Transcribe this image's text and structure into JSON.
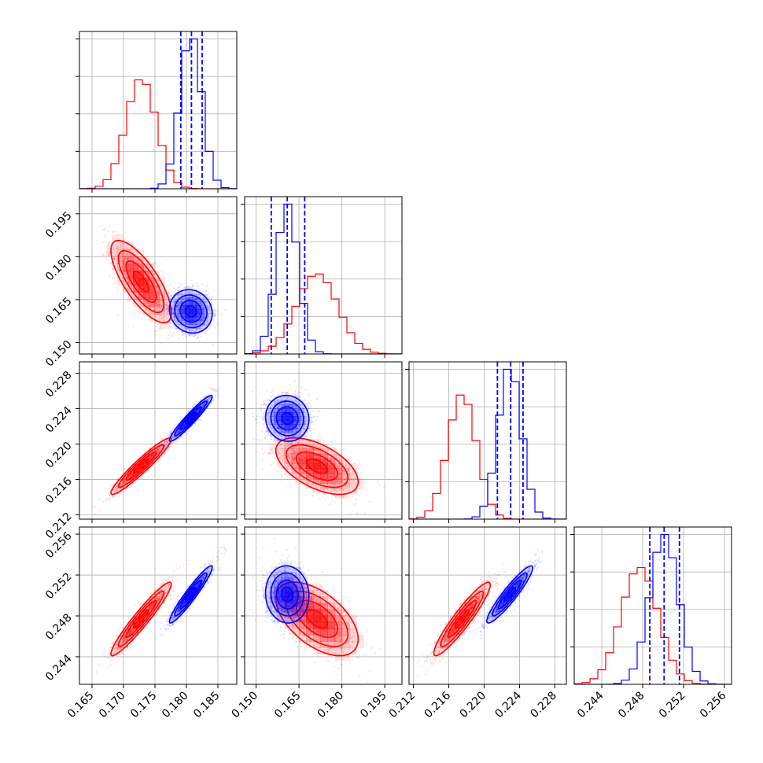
{
  "chart_data": {
    "type": "scatter",
    "subtype": "corner-plot",
    "grid": true,
    "legend": "none",
    "colors": {
      "red": "#ff0000",
      "blue": "#0000ff"
    },
    "params": [
      {
        "range": [
          0.163,
          0.188
        ],
        "ticks": [
          "0.165",
          "0.170",
          "0.175",
          "0.180",
          "0.185"
        ],
        "tick_values": [
          0.165,
          0.17,
          0.175,
          0.18,
          0.185
        ]
      },
      {
        "range": [
          0.146,
          0.201
        ],
        "ticks": [
          "0.150",
          "0.165",
          "0.180",
          "0.195"
        ],
        "tick_values": [
          0.15,
          0.165,
          0.18,
          0.195
        ]
      },
      {
        "range": [
          0.2115,
          0.2293
        ],
        "ticks": [
          "0.212",
          "0.216",
          "0.220",
          "0.224",
          "0.228"
        ],
        "tick_values": [
          0.212,
          0.216,
          0.22,
          0.224,
          0.228
        ]
      },
      {
        "range": [
          0.2413,
          0.2567
        ],
        "ticks": [
          "0.244",
          "0.248",
          "0.252",
          "0.256"
        ],
        "tick_values": [
          0.244,
          0.248,
          0.252,
          0.256
        ]
      }
    ],
    "series": [
      {
        "color": "#ff0000",
        "mean": [
          0.1728,
          0.1713,
          0.2175,
          0.2477
        ],
        "std": [
          0.0024,
          0.0072,
          0.0016,
          0.0018
        ],
        "corr": [
          [
            1.0,
            -0.75,
            0.95,
            0.95
          ],
          [
            -0.75,
            1.0,
            -0.55,
            -0.55
          ],
          [
            0.95,
            -0.55,
            1.0,
            0.93
          ],
          [
            0.95,
            -0.55,
            0.93,
            1.0
          ]
        ],
        "quantiles": [
          null,
          null,
          null,
          null
        ]
      },
      {
        "color": "#0000ff",
        "mean": [
          0.1807,
          0.1609,
          0.2229,
          0.2501
        ],
        "std": [
          0.0017,
          0.0038,
          0.0013,
          0.0014
        ],
        "corr": [
          [
            1.0,
            -0.1,
            0.95,
            0.95
          ],
          [
            -0.1,
            1.0,
            -0.05,
            -0.05
          ],
          [
            0.95,
            -0.05,
            1.0,
            0.93
          ],
          [
            0.95,
            -0.05,
            0.93,
            1.0
          ]
        ],
        "quantiles": [
          [
            0.1791,
            0.1808,
            0.1825
          ],
          [
            0.1553,
            0.1609,
            0.167
          ],
          [
            0.2215,
            0.223,
            0.2244
          ],
          [
            0.2487,
            0.2501,
            0.2516
          ]
        ]
      }
    ]
  }
}
